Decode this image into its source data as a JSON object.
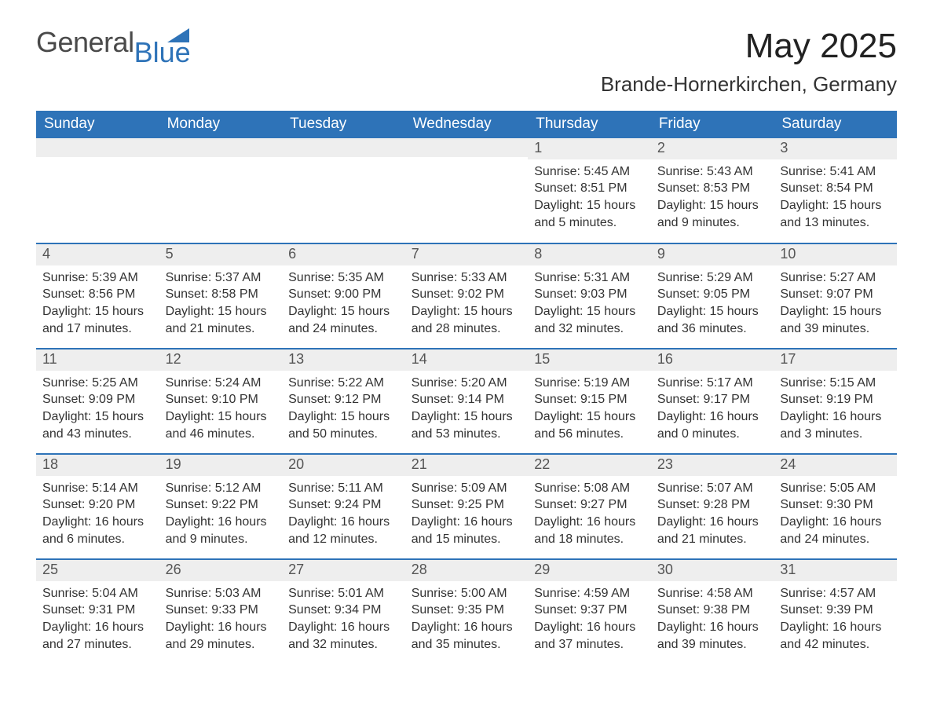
{
  "brand": {
    "logo_text_1": "General",
    "logo_text_2": "Blue",
    "logo_color_text": "#4a4a4a",
    "logo_color_accent": "#2e73b8"
  },
  "header": {
    "title": "May 2025",
    "subtitle": "Brande-Hornerkirchen, Germany"
  },
  "style": {
    "background_color": "#ffffff",
    "header_bg": "#2e73b8",
    "header_fg": "#ffffff",
    "daynum_bg": "#eeeeee",
    "daynum_fg": "#555555",
    "text_color": "#333333",
    "row_divider_color": "#2e73b8",
    "th_fontsize": 19,
    "daynum_fontsize": 18,
    "body_fontsize": 16,
    "title_fontsize": 44,
    "subtitle_fontsize": 26,
    "font_family": "Arial, Helvetica, sans-serif"
  },
  "calendar": {
    "type": "table",
    "columns": [
      "Sunday",
      "Monday",
      "Tuesday",
      "Wednesday",
      "Thursday",
      "Friday",
      "Saturday"
    ],
    "weeks": [
      [
        {
          "day": "",
          "sunrise": "",
          "sunset": "",
          "daylight": ""
        },
        {
          "day": "",
          "sunrise": "",
          "sunset": "",
          "daylight": ""
        },
        {
          "day": "",
          "sunrise": "",
          "sunset": "",
          "daylight": ""
        },
        {
          "day": "",
          "sunrise": "",
          "sunset": "",
          "daylight": ""
        },
        {
          "day": "1",
          "sunrise": "Sunrise: 5:45 AM",
          "sunset": "Sunset: 8:51 PM",
          "daylight": "Daylight: 15 hours and 5 minutes."
        },
        {
          "day": "2",
          "sunrise": "Sunrise: 5:43 AM",
          "sunset": "Sunset: 8:53 PM",
          "daylight": "Daylight: 15 hours and 9 minutes."
        },
        {
          "day": "3",
          "sunrise": "Sunrise: 5:41 AM",
          "sunset": "Sunset: 8:54 PM",
          "daylight": "Daylight: 15 hours and 13 minutes."
        }
      ],
      [
        {
          "day": "4",
          "sunrise": "Sunrise: 5:39 AM",
          "sunset": "Sunset: 8:56 PM",
          "daylight": "Daylight: 15 hours and 17 minutes."
        },
        {
          "day": "5",
          "sunrise": "Sunrise: 5:37 AM",
          "sunset": "Sunset: 8:58 PM",
          "daylight": "Daylight: 15 hours and 21 minutes."
        },
        {
          "day": "6",
          "sunrise": "Sunrise: 5:35 AM",
          "sunset": "Sunset: 9:00 PM",
          "daylight": "Daylight: 15 hours and 24 minutes."
        },
        {
          "day": "7",
          "sunrise": "Sunrise: 5:33 AM",
          "sunset": "Sunset: 9:02 PM",
          "daylight": "Daylight: 15 hours and 28 minutes."
        },
        {
          "day": "8",
          "sunrise": "Sunrise: 5:31 AM",
          "sunset": "Sunset: 9:03 PM",
          "daylight": "Daylight: 15 hours and 32 minutes."
        },
        {
          "day": "9",
          "sunrise": "Sunrise: 5:29 AM",
          "sunset": "Sunset: 9:05 PM",
          "daylight": "Daylight: 15 hours and 36 minutes."
        },
        {
          "day": "10",
          "sunrise": "Sunrise: 5:27 AM",
          "sunset": "Sunset: 9:07 PM",
          "daylight": "Daylight: 15 hours and 39 minutes."
        }
      ],
      [
        {
          "day": "11",
          "sunrise": "Sunrise: 5:25 AM",
          "sunset": "Sunset: 9:09 PM",
          "daylight": "Daylight: 15 hours and 43 minutes."
        },
        {
          "day": "12",
          "sunrise": "Sunrise: 5:24 AM",
          "sunset": "Sunset: 9:10 PM",
          "daylight": "Daylight: 15 hours and 46 minutes."
        },
        {
          "day": "13",
          "sunrise": "Sunrise: 5:22 AM",
          "sunset": "Sunset: 9:12 PM",
          "daylight": "Daylight: 15 hours and 50 minutes."
        },
        {
          "day": "14",
          "sunrise": "Sunrise: 5:20 AM",
          "sunset": "Sunset: 9:14 PM",
          "daylight": "Daylight: 15 hours and 53 minutes."
        },
        {
          "day": "15",
          "sunrise": "Sunrise: 5:19 AM",
          "sunset": "Sunset: 9:15 PM",
          "daylight": "Daylight: 15 hours and 56 minutes."
        },
        {
          "day": "16",
          "sunrise": "Sunrise: 5:17 AM",
          "sunset": "Sunset: 9:17 PM",
          "daylight": "Daylight: 16 hours and 0 minutes."
        },
        {
          "day": "17",
          "sunrise": "Sunrise: 5:15 AM",
          "sunset": "Sunset: 9:19 PM",
          "daylight": "Daylight: 16 hours and 3 minutes."
        }
      ],
      [
        {
          "day": "18",
          "sunrise": "Sunrise: 5:14 AM",
          "sunset": "Sunset: 9:20 PM",
          "daylight": "Daylight: 16 hours and 6 minutes."
        },
        {
          "day": "19",
          "sunrise": "Sunrise: 5:12 AM",
          "sunset": "Sunset: 9:22 PM",
          "daylight": "Daylight: 16 hours and 9 minutes."
        },
        {
          "day": "20",
          "sunrise": "Sunrise: 5:11 AM",
          "sunset": "Sunset: 9:24 PM",
          "daylight": "Daylight: 16 hours and 12 minutes."
        },
        {
          "day": "21",
          "sunrise": "Sunrise: 5:09 AM",
          "sunset": "Sunset: 9:25 PM",
          "daylight": "Daylight: 16 hours and 15 minutes."
        },
        {
          "day": "22",
          "sunrise": "Sunrise: 5:08 AM",
          "sunset": "Sunset: 9:27 PM",
          "daylight": "Daylight: 16 hours and 18 minutes."
        },
        {
          "day": "23",
          "sunrise": "Sunrise: 5:07 AM",
          "sunset": "Sunset: 9:28 PM",
          "daylight": "Daylight: 16 hours and 21 minutes."
        },
        {
          "day": "24",
          "sunrise": "Sunrise: 5:05 AM",
          "sunset": "Sunset: 9:30 PM",
          "daylight": "Daylight: 16 hours and 24 minutes."
        }
      ],
      [
        {
          "day": "25",
          "sunrise": "Sunrise: 5:04 AM",
          "sunset": "Sunset: 9:31 PM",
          "daylight": "Daylight: 16 hours and 27 minutes."
        },
        {
          "day": "26",
          "sunrise": "Sunrise: 5:03 AM",
          "sunset": "Sunset: 9:33 PM",
          "daylight": "Daylight: 16 hours and 29 minutes."
        },
        {
          "day": "27",
          "sunrise": "Sunrise: 5:01 AM",
          "sunset": "Sunset: 9:34 PM",
          "daylight": "Daylight: 16 hours and 32 minutes."
        },
        {
          "day": "28",
          "sunrise": "Sunrise: 5:00 AM",
          "sunset": "Sunset: 9:35 PM",
          "daylight": "Daylight: 16 hours and 35 minutes."
        },
        {
          "day": "29",
          "sunrise": "Sunrise: 4:59 AM",
          "sunset": "Sunset: 9:37 PM",
          "daylight": "Daylight: 16 hours and 37 minutes."
        },
        {
          "day": "30",
          "sunrise": "Sunrise: 4:58 AM",
          "sunset": "Sunset: 9:38 PM",
          "daylight": "Daylight: 16 hours and 39 minutes."
        },
        {
          "day": "31",
          "sunrise": "Sunrise: 4:57 AM",
          "sunset": "Sunset: 9:39 PM",
          "daylight": "Daylight: 16 hours and 42 minutes."
        }
      ]
    ]
  }
}
